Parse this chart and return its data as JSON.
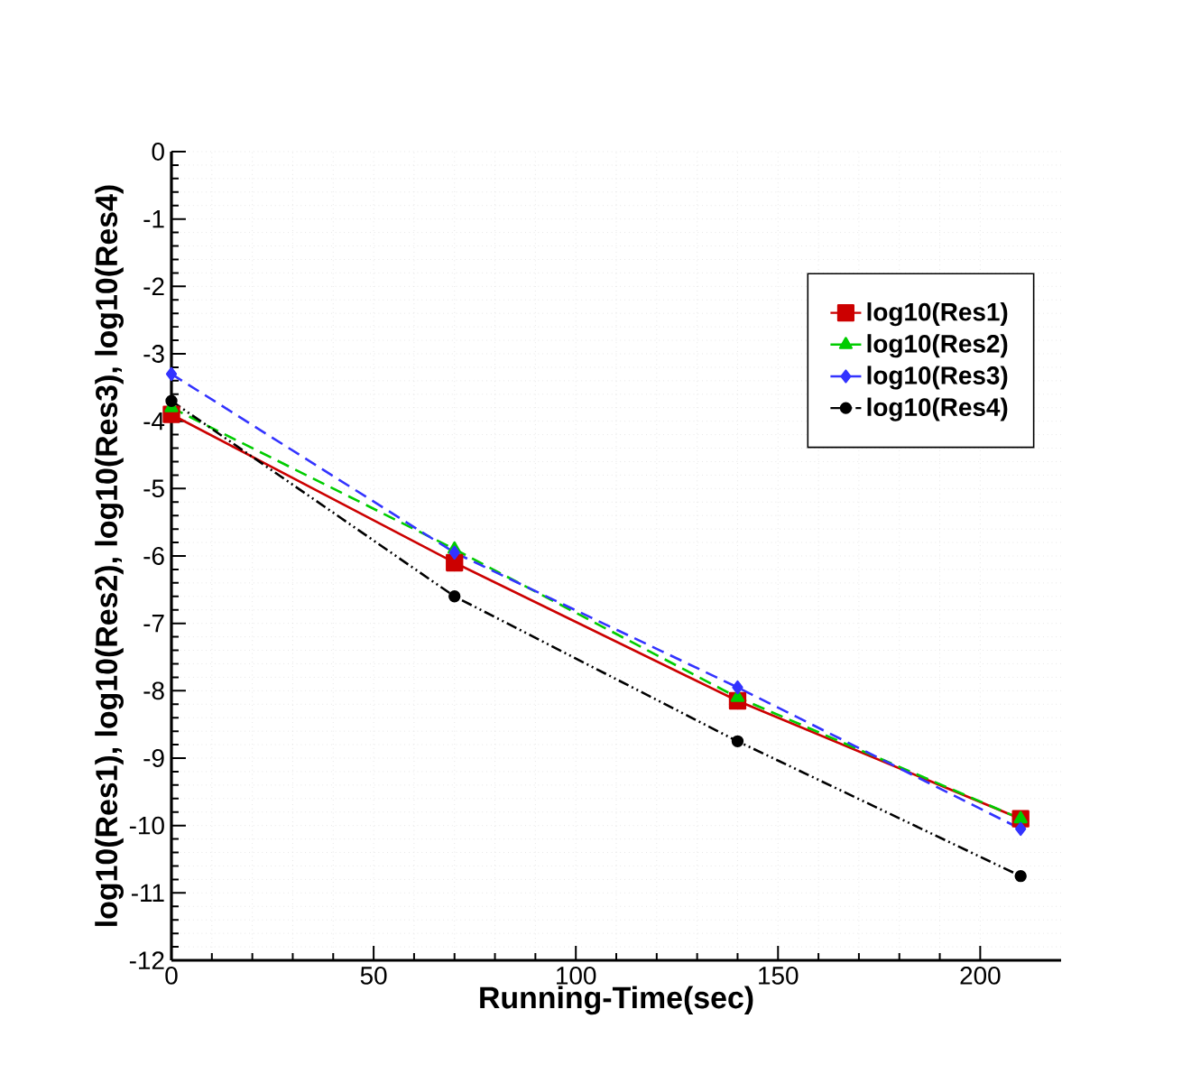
{
  "chart_data": {
    "type": "line",
    "xlabel": "Running-Time(sec)",
    "ylabel": "log10(Res1), log10(Res2), log10(Res3), log10(Res4)",
    "x": [
      0,
      70,
      140,
      210
    ],
    "series": [
      {
        "name": "log10(Res1)",
        "color": "#cc0000",
        "values": [
          -3.9,
          -6.1,
          -8.15,
          -9.9
        ],
        "marker": "square",
        "line_style": "solid"
      },
      {
        "name": "log10(Res2)",
        "color": "#00cc00",
        "values": [
          -3.8,
          -5.9,
          -8.1,
          -9.9
        ],
        "marker": "triangle",
        "line_style": "dashed"
      },
      {
        "name": "log10(Res3)",
        "color": "#3333ff",
        "values": [
          -3.3,
          -5.95,
          -7.95,
          -10.05
        ],
        "marker": "diamond",
        "line_style": "dashed"
      },
      {
        "name": "log10(Res4)",
        "color": "#000000",
        "values": [
          -3.7,
          -6.6,
          -8.75,
          -10.75
        ],
        "marker": "circle",
        "line_style": "dashdotdotted"
      }
    ],
    "xlim": [
      0,
      220
    ],
    "ylim": [
      -12,
      0
    ],
    "xticks": [
      0,
      50,
      100,
      150,
      200
    ],
    "yticks": [
      -12,
      -11,
      -10,
      -9,
      -8,
      -7,
      -6,
      -5,
      -4,
      -3,
      -2,
      -1,
      0
    ],
    "grid": true,
    "legend": "top right"
  }
}
